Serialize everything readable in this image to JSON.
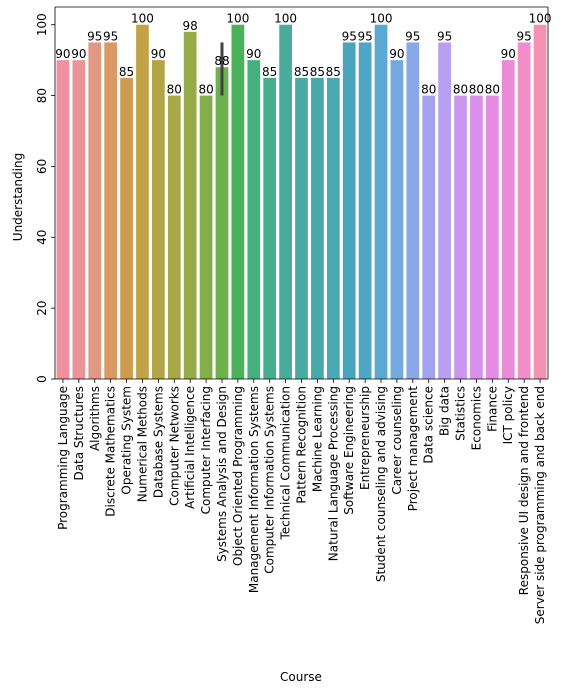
{
  "chart_data": {
    "type": "bar",
    "xlabel": "Course",
    "ylabel": "Understanding",
    "ylim": [
      0,
      105
    ],
    "yticks": [
      0,
      20,
      40,
      60,
      80,
      100
    ],
    "grid": false,
    "legend": "none",
    "categories": [
      "Programming Language",
      "Data Structures",
      "Algorithms",
      "Discrete Mathematics",
      "Operating System",
      "Numerical Methods",
      "Database Systems",
      "Computer Networks",
      "Artificial Intelligence",
      "Computer Interfacing",
      "Systems Analysis and Design",
      "Object Oriented Programming",
      "Management Information Systems",
      "Computer Information Systems",
      "Technical Communication",
      "Pattern Recognition",
      "Machine Learning",
      "Natural Language Processing",
      "Software Engineering",
      "Entrepreneurship",
      "Student counseling and advising",
      "Career counseling",
      "Project management",
      "Data science",
      "Big data",
      "Statistics",
      "Economics",
      "Finance",
      "ICT policy",
      "Responsive UI design and frontend",
      "Server side programming and back end"
    ],
    "values": [
      90,
      90,
      95,
      95,
      85,
      100,
      90,
      80,
      98,
      80,
      88,
      100,
      90,
      85,
      100,
      85,
      85,
      85,
      95,
      95,
      100,
      90,
      95,
      80,
      95,
      80,
      80,
      80,
      90,
      95,
      100
    ],
    "labels": [
      "90",
      "90",
      "95",
      "95",
      "85",
      "100",
      "90",
      "80",
      "98",
      "80",
      "88",
      "100",
      "90",
      "85",
      "100",
      "85",
      "85",
      "85",
      "95",
      "95",
      "100",
      "90",
      "95",
      "80",
      "95",
      "80",
      "80",
      "80",
      "90",
      "95",
      "100"
    ],
    "error_bars": [
      {
        "category": "Systems Analysis and Design",
        "low": 80,
        "high": 95
      }
    ],
    "colors": [
      "#f1909f",
      "#e99496",
      "#e09883",
      "#da9a64",
      "#cd9c4e",
      "#c4a248",
      "#b3a447",
      "#a8a748",
      "#96ab47",
      "#84ae49",
      "#6bb24c",
      "#49b25a",
      "#44b17e",
      "#45ae8e",
      "#47ac9b",
      "#47aaa5",
      "#48a9ac",
      "#49a8b3",
      "#49a5bc",
      "#4da6c5",
      "#5ba8d2",
      "#72aadf",
      "#8ba7e7",
      "#a3a2ee",
      "#b79ff2",
      "#ca97f0",
      "#d98fec",
      "#e58be4",
      "#ea8bd8",
      "#f18dc7",
      "#f491b5"
    ]
  }
}
